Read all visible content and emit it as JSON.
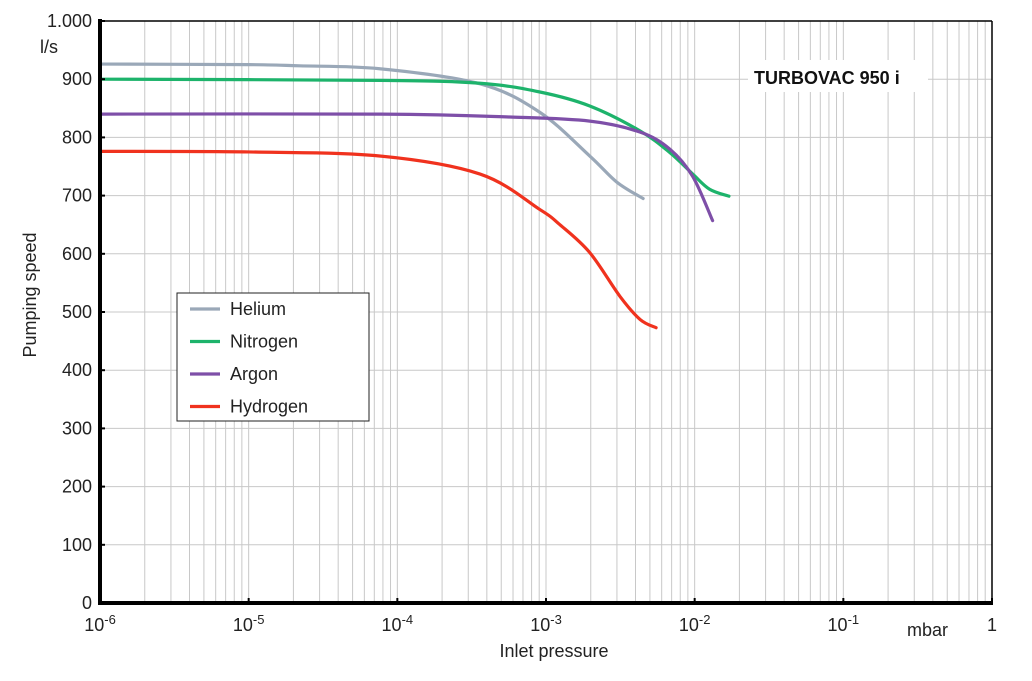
{
  "chart_data": {
    "type": "line",
    "title": "TURBOVAC 950 i",
    "xlabel": "Inlet pressure",
    "xunit": "mbar",
    "ylabel": "Pumping speed",
    "yunit": "l/s",
    "xscale": "log",
    "xlim": [
      1e-06,
      1
    ],
    "ylim": [
      0,
      1000
    ],
    "grid": true,
    "legend_position": "center-left",
    "yticks": [
      {
        "value": 0,
        "label": "0"
      },
      {
        "value": 100,
        "label": "100"
      },
      {
        "value": 200,
        "label": "200"
      },
      {
        "value": 300,
        "label": "300"
      },
      {
        "value": 400,
        "label": "400"
      },
      {
        "value": 500,
        "label": "500"
      },
      {
        "value": 600,
        "label": "600"
      },
      {
        "value": 700,
        "label": "700"
      },
      {
        "value": 800,
        "label": "800"
      },
      {
        "value": 900,
        "label": "900"
      },
      {
        "value": 1000,
        "label": "1.000"
      }
    ],
    "xticks": [
      {
        "value": 1e-06,
        "base": "10",
        "exp": "-6"
      },
      {
        "value": 1e-05,
        "base": "10",
        "exp": "-5"
      },
      {
        "value": 0.0001,
        "base": "10",
        "exp": "-4"
      },
      {
        "value": 0.001,
        "base": "10",
        "exp": "-3"
      },
      {
        "value": 0.01,
        "base": "10",
        "exp": "-2"
      },
      {
        "value": 0.1,
        "base": "10",
        "exp": "-1"
      },
      {
        "value": 1,
        "base": "1",
        "exp": ""
      }
    ],
    "series": [
      {
        "name": "Helium",
        "color": "#9aa8b8",
        "x": [
          1e-06,
          1e-05,
          2.2e-05,
          7.6e-05,
          0.00036,
          0.00091,
          0.00197,
          0.003,
          0.0045
        ],
        "y": [
          926,
          925,
          923,
          918,
          892,
          843,
          768,
          723,
          695
        ]
      },
      {
        "name": "Nitrogen",
        "color": "#1db36b",
        "x": [
          1e-06,
          7.6e-05,
          0.00036,
          0.00091,
          0.00197,
          0.0043,
          0.0068,
          0.0097,
          0.0126,
          0.017
        ],
        "y": [
          900,
          898,
          893,
          878,
          854,
          811,
          774,
          737,
          711,
          699
        ]
      },
      {
        "name": "Argon",
        "color": "#7e4fa8",
        "x": [
          1e-06,
          7.6e-05,
          0.00057,
          0.00197,
          0.0043,
          0.0068,
          0.0097,
          0.0132
        ],
        "y": [
          840,
          840,
          835,
          828,
          809,
          780,
          733,
          657
        ]
      },
      {
        "name": "Hydrogen",
        "color": "#f0321e",
        "x": [
          1e-06,
          1e-05,
          7.6e-05,
          0.00036,
          0.00091,
          0.00124,
          0.00197,
          0.00314,
          0.0043,
          0.0055
        ],
        "y": [
          776,
          775,
          768,
          737,
          676,
          650,
          602,
          527,
          487,
          473
        ]
      }
    ]
  }
}
